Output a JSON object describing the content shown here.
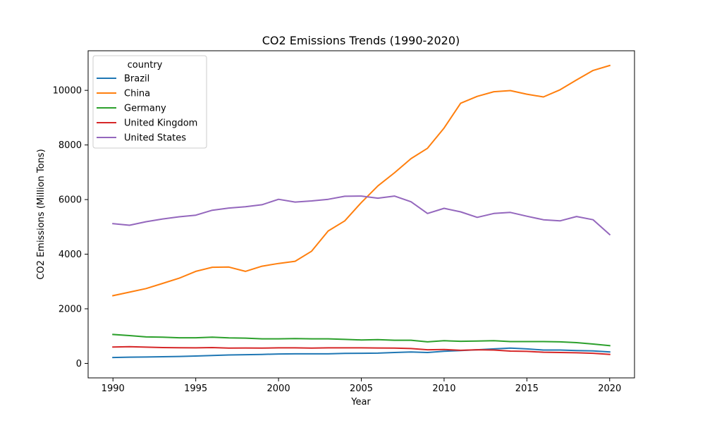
{
  "chart_data": {
    "type": "line",
    "title": "CO2 Emissions Trends (1990-2020)",
    "xlabel": "Year",
    "ylabel": "CO2 Emissions (Million Tons)",
    "xlim": [
      1988.5,
      2021.5
    ],
    "ylim": [
      -530,
      11450
    ],
    "xticks": [
      1990,
      1995,
      2000,
      2005,
      2010,
      2015,
      2020
    ],
    "yticks": [
      0,
      2000,
      4000,
      6000,
      8000,
      10000
    ],
    "grid": false,
    "legend": {
      "title": "country",
      "placement": "top-left"
    },
    "x": [
      1990,
      1991,
      1992,
      1993,
      1994,
      1995,
      1996,
      1997,
      1998,
      1999,
      2000,
      2001,
      2002,
      2003,
      2004,
      2005,
      2006,
      2007,
      2008,
      2009,
      2010,
      2011,
      2012,
      2013,
      2014,
      2015,
      2016,
      2017,
      2018,
      2019,
      2020
    ],
    "series": [
      {
        "name": "Brazil",
        "color": "#1f77b4",
        "values": [
          215,
          230,
          235,
          245,
          255,
          270,
          290,
          310,
          320,
          330,
          345,
          350,
          350,
          350,
          365,
          370,
          375,
          400,
          420,
          400,
          445,
          470,
          500,
          530,
          560,
          530,
          490,
          490,
          470,
          460,
          420
        ]
      },
      {
        "name": "China",
        "color": "#ff7f0e",
        "values": [
          2480,
          2610,
          2740,
          2930,
          3120,
          3370,
          3520,
          3530,
          3370,
          3560,
          3660,
          3740,
          4110,
          4850,
          5220,
          5890,
          6500,
          6980,
          7500,
          7880,
          8620,
          9530,
          9780,
          9950,
          9990,
          9860,
          9760,
          10020,
          10380,
          10730,
          10910
        ]
      },
      {
        "name": "Germany",
        "color": "#2ca02c",
        "values": [
          1060,
          1020,
          970,
          960,
          940,
          940,
          960,
          935,
          925,
          900,
          900,
          910,
          900,
          900,
          880,
          860,
          870,
          850,
          850,
          790,
          830,
          810,
          820,
          830,
          800,
          800,
          800,
          790,
          760,
          710,
          650
        ]
      },
      {
        "name": "United Kingdom",
        "color": "#d62728",
        "values": [
          600,
          610,
          595,
          580,
          575,
          570,
          580,
          560,
          565,
          560,
          570,
          570,
          560,
          570,
          570,
          570,
          565,
          560,
          545,
          500,
          510,
          480,
          500,
          490,
          450,
          440,
          410,
          400,
          390,
          370,
          330
        ]
      },
      {
        "name": "United States",
        "color": "#9467bd",
        "values": [
          5120,
          5060,
          5190,
          5290,
          5370,
          5430,
          5610,
          5690,
          5740,
          5810,
          6010,
          5910,
          5950,
          6010,
          6120,
          6130,
          6050,
          6130,
          5920,
          5490,
          5680,
          5550,
          5350,
          5490,
          5530,
          5390,
          5260,
          5220,
          5380,
          5260,
          4720
        ]
      }
    ]
  }
}
